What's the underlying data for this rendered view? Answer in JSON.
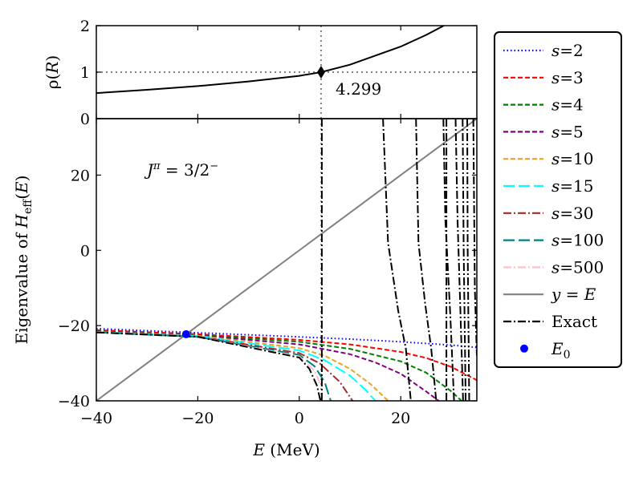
{
  "chart_data": [
    {
      "type": "line",
      "panel": "top",
      "ylabel": "ρ(R)",
      "xlim": [
        -40,
        35
      ],
      "ylim": [
        0,
        2
      ],
      "yticks": [
        0,
        1,
        2
      ],
      "series": [
        {
          "name": "rho(R)",
          "color": "#000000",
          "style": "solid",
          "x": [
            -40,
            -30,
            -20,
            -10,
            0,
            4.299,
            10,
            20,
            25,
            28.5
          ],
          "y": [
            0.55,
            0.62,
            0.7,
            0.8,
            0.92,
            1.0,
            1.16,
            1.55,
            1.8,
            2.0
          ]
        }
      ],
      "reference_lines": {
        "hline_y": 1,
        "vline_x": 4.299
      },
      "marker": {
        "x": 4.299,
        "y": 1,
        "shape": "diamond"
      },
      "annotation": "4.299"
    },
    {
      "type": "line",
      "panel": "bottom",
      "xlabel": "E (MeV)",
      "ylabel": "Eigenvalue of H_eff(E)",
      "xlim": [
        -40,
        35
      ],
      "ylim": [
        -40,
        35
      ],
      "xticks": [
        -40,
        -20,
        0,
        20
      ],
      "xtick_labels": [
        "−40",
        "−20",
        "0",
        "20"
      ],
      "yticks": [
        -40,
        -20,
        0,
        20
      ],
      "ytick_labels": [
        "−40",
        "−20",
        "0",
        "20"
      ],
      "annotation": "Jπ = 3/2−",
      "E0": {
        "x": -22.3,
        "y": -22.3
      },
      "series": [
        {
          "name": "s=2",
          "color": "#0000ff",
          "style": "dotted",
          "x": [
            -40,
            -20,
            0,
            10,
            20,
            30,
            35
          ],
          "y": [
            -20.8,
            -21.9,
            -23.0,
            -23.6,
            -24.3,
            -25.2,
            -25.8
          ]
        },
        {
          "name": "s=3",
          "color": "#ff0000",
          "style": "dashed",
          "x": [
            -40,
            -20,
            0,
            10,
            20,
            25,
            30,
            35
          ],
          "y": [
            -21.2,
            -22.3,
            -23.8,
            -25.0,
            -27.0,
            -28.6,
            -31.0,
            -34.5
          ]
        },
        {
          "name": "s=4",
          "color": "#008000",
          "style": "dashed",
          "x": [
            -40,
            -20,
            0,
            10,
            20,
            25,
            30,
            32
          ],
          "y": [
            -21.5,
            -22.5,
            -24.3,
            -26.2,
            -29.5,
            -32.5,
            -37.5,
            -40
          ]
        },
        {
          "name": "s=5",
          "color": "#800080",
          "style": "dashed",
          "x": [
            -40,
            -20,
            0,
            10,
            15,
            20,
            25,
            27.5
          ],
          "y": [
            -21.6,
            -22.6,
            -25.0,
            -27.6,
            -29.8,
            -32.8,
            -37.5,
            -40
          ]
        },
        {
          "name": "s=10",
          "color": "#e6a42b",
          "style": "dashed",
          "x": [
            -40,
            -20,
            0,
            5,
            10,
            14,
            17.5
          ],
          "y": [
            -21.7,
            -22.7,
            -26.0,
            -28.0,
            -31.5,
            -35.5,
            -40
          ]
        },
        {
          "name": "s=15",
          "color": "#00ffff",
          "style": "longdash",
          "x": [
            -40,
            -20,
            0,
            5,
            10,
            13,
            15
          ],
          "y": [
            -21.7,
            -22.8,
            -26.6,
            -29.2,
            -33.3,
            -37.0,
            -40
          ]
        },
        {
          "name": "s=30",
          "color": "#a52a2a",
          "style": "dashdot",
          "x": [
            -40,
            -20,
            0,
            4,
            8,
            10.5
          ],
          "y": [
            -21.8,
            -22.9,
            -27.3,
            -30.0,
            -35.0,
            -40
          ]
        },
        {
          "name": "s=100",
          "color": "#008080",
          "style": "longdash",
          "x": [
            -40,
            -20,
            0,
            3,
            5,
            6.2
          ],
          "y": [
            -21.8,
            -23.0,
            -27.8,
            -30.8,
            -35.0,
            -40
          ]
        },
        {
          "name": "s=500",
          "color": "#ffc0cb",
          "style": "dashdot",
          "x": [
            -40,
            -20,
            0,
            3,
            4.3
          ],
          "y": [
            -21.8,
            -23.0,
            -28.2,
            -32.0,
            -36.0
          ]
        },
        {
          "name": "y = E",
          "color": "#808080",
          "style": "solid",
          "x": [
            -40,
            35
          ],
          "y": [
            -40,
            35
          ]
        },
        {
          "name": "Exact",
          "color": "#000000",
          "style": "dashdot",
          "x": [
            -40,
            -20,
            0,
            2,
            3.5,
            4.0,
            4.2
          ],
          "y": [
            -21.8,
            -23.0,
            -28.5,
            -31.5,
            -36.0,
            -39.0,
            -40
          ]
        }
      ],
      "exact_extra_branches": [
        {
          "x": [
            4.45,
            4.45
          ],
          "y": [
            35,
            -40
          ]
        },
        {
          "x": [
            16.5,
            17.5,
            19.5,
            21.0,
            22.0
          ],
          "y": [
            35,
            2,
            -16,
            -26,
            -40
          ]
        },
        {
          "x": [
            23.0,
            23.5,
            24.8,
            26.0,
            27.0
          ],
          "y": [
            35,
            2,
            -14,
            -26,
            -40
          ]
        },
        {
          "x": [
            28.4,
            28.8,
            29.8,
            30.5
          ],
          "y": [
            35,
            8,
            -18,
            -40
          ]
        },
        {
          "x": [
            29.0,
            29.0
          ],
          "y": [
            35,
            -40
          ]
        },
        {
          "x": [
            30.8,
            31.2,
            31.8,
            32.3
          ],
          "y": [
            35,
            8,
            -18,
            -40
          ]
        },
        {
          "x": [
            32.2,
            32.4,
            32.8
          ],
          "y": [
            35,
            0,
            -40
          ]
        },
        {
          "x": [
            33.1,
            33.2,
            33.5
          ],
          "y": [
            35,
            0,
            -40
          ]
        },
        {
          "x": [
            34.3,
            34.6,
            35
          ],
          "y": [
            35,
            -10,
            -28
          ]
        }
      ]
    }
  ],
  "legend": [
    {
      "label": "s=2",
      "color": "#0000ff",
      "style": "dotted",
      "kind": "line"
    },
    {
      "label": "s=3",
      "color": "#ff0000",
      "style": "dashed",
      "kind": "line"
    },
    {
      "label": "s=4",
      "color": "#008000",
      "style": "dashed",
      "kind": "line"
    },
    {
      "label": "s=5",
      "color": "#800080",
      "style": "dashed",
      "kind": "line"
    },
    {
      "label": "s=10",
      "color": "#e6a42b",
      "style": "dashed",
      "kind": "line"
    },
    {
      "label": "s=15",
      "color": "#00ffff",
      "style": "longdash",
      "kind": "line"
    },
    {
      "label": "s=30",
      "color": "#a52a2a",
      "style": "dashdot",
      "kind": "line"
    },
    {
      "label": "s=100",
      "color": "#008080",
      "style": "longdash",
      "kind": "line"
    },
    {
      "label": "s=500",
      "color": "#ffc0cb",
      "style": "dashdot",
      "kind": "line"
    },
    {
      "label": "y = E",
      "color": "#808080",
      "style": "solid",
      "kind": "line"
    },
    {
      "label": "Exact",
      "color": "#000000",
      "style": "dashdot",
      "kind": "line"
    },
    {
      "label": "E0",
      "color": "#0000ff",
      "style": "none",
      "kind": "marker"
    }
  ]
}
